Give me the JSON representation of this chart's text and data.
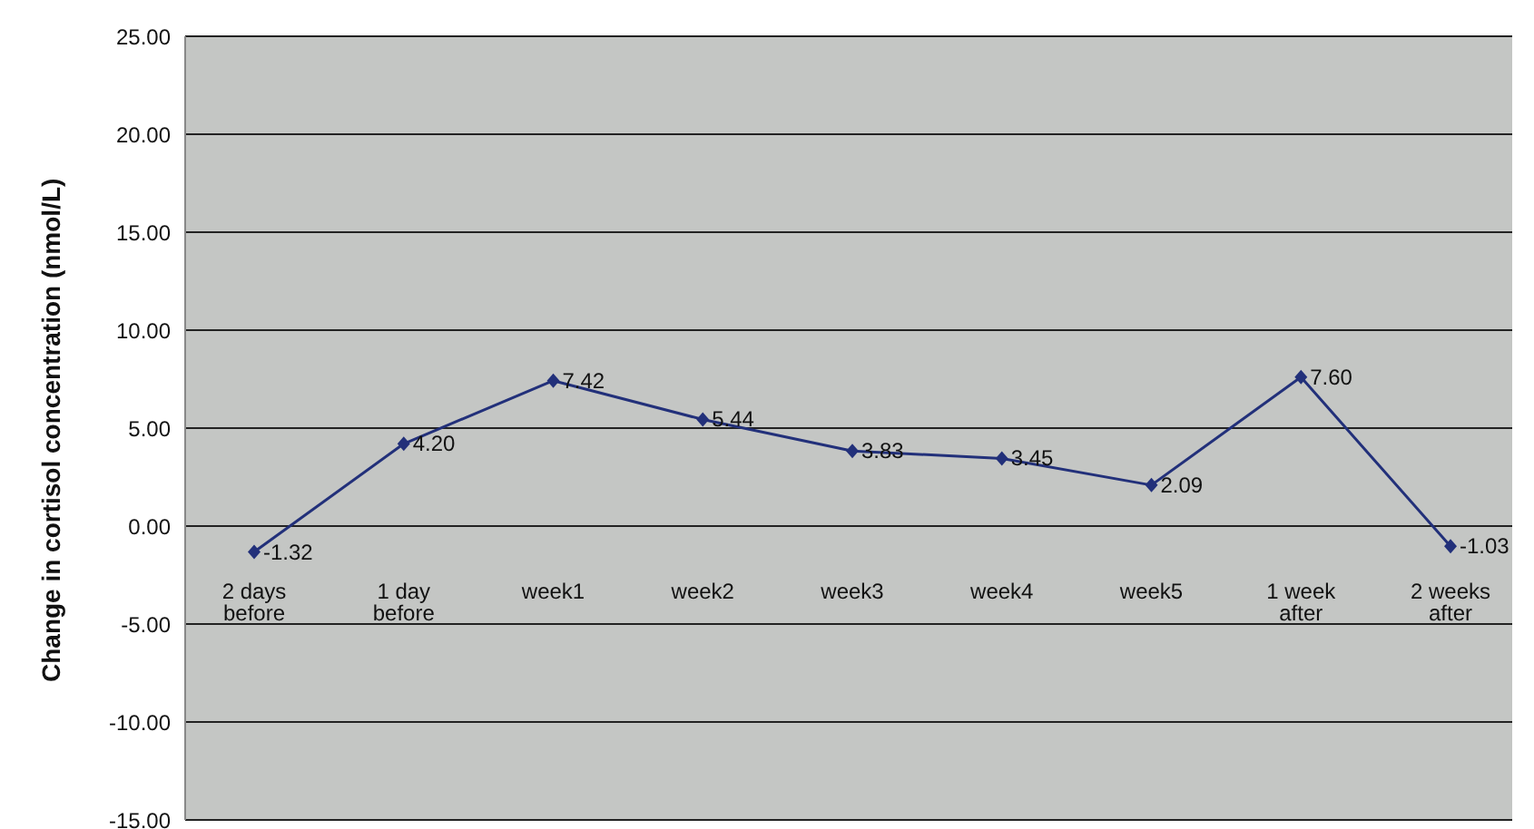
{
  "chart_data": {
    "type": "line",
    "ylabel": "Change in cortisol concentration (nmol/L)",
    "categories": [
      "2 days before",
      "1 day before",
      "week1",
      "week2",
      "week3",
      "week4",
      "week5",
      "1 week after",
      "2 weeks after"
    ],
    "series": [
      {
        "color": "#22307a",
        "values": [
          -1.32,
          4.2,
          7.42,
          5.44,
          3.83,
          3.45,
          2.09,
          7.6,
          -1.03
        ],
        "value_labels": [
          "-1.32",
          "4.20",
          "7.42",
          "5.44",
          "3.83",
          "3.45",
          "2.09",
          "7.60",
          "-1.03"
        ]
      }
    ],
    "ylim": [
      -15,
      25
    ],
    "yticks": [
      {
        "value": -15,
        "label": "-15.00"
      },
      {
        "value": -10,
        "label": "-10.00"
      },
      {
        "value": -5,
        "label": "-5.00"
      },
      {
        "value": 0,
        "label": "0.00"
      },
      {
        "value": 5,
        "label": "5.00"
      },
      {
        "value": 10,
        "label": "10.00"
      },
      {
        "value": 15,
        "label": "15.00"
      },
      {
        "value": 20,
        "label": "20.00"
      },
      {
        "value": 25,
        "label": "25.00"
      }
    ],
    "grid": "y",
    "marker": "diamond",
    "legend": false
  }
}
